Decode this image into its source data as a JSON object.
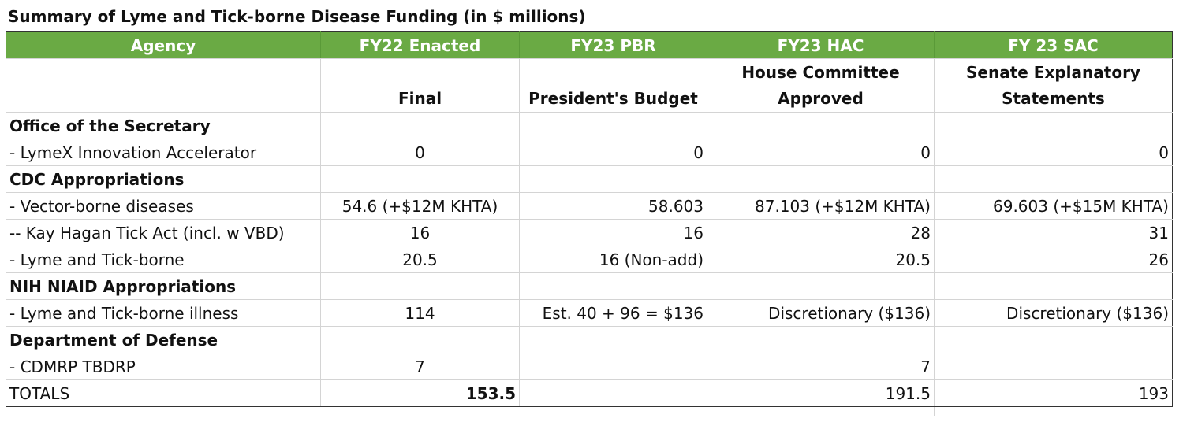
{
  "title": "Summary of Lyme and Tick-borne Disease Funding (in $ millions)",
  "headers": [
    "Agency",
    "FY22 Enacted",
    "FY23 PBR",
    "FY23 HAC",
    "FY 23 SAC"
  ],
  "subheaders": {
    "fy22": "Final",
    "pbr": "President's Budget",
    "hac": [
      "House Committee",
      "Approved"
    ],
    "sac": [
      "Senate Explanatory",
      "Statements"
    ]
  },
  "rows": [
    {
      "label": "Office of the Secretary",
      "type": "section",
      "cells": [
        "",
        "",
        "",
        ""
      ]
    },
    {
      "label": " - LymeX Innovation Accelerator",
      "type": "item",
      "cells": [
        "0",
        "0",
        "0",
        "0"
      ]
    },
    {
      "label": "CDC Appropriations",
      "type": "section",
      "cells": [
        "",
        "",
        "",
        ""
      ]
    },
    {
      "label": " - Vector-borne diseases",
      "type": "item",
      "cells": [
        "54.6 (+$12M KHTA)",
        "58.603",
        "87.103 (+$12M KHTA)",
        "69.603 (+$15M KHTA)"
      ]
    },
    {
      "label": " -- Kay Hagan Tick Act (incl. w VBD)",
      "type": "item",
      "cells": [
        "16",
        "16",
        "28",
        "31"
      ]
    },
    {
      "label": " - Lyme and Tick-borne",
      "type": "item",
      "cells": [
        "20.5",
        "16 (Non-add)",
        "20.5",
        "26"
      ]
    },
    {
      "label": "NIH NIAID Appropriations",
      "type": "section",
      "cells": [
        "",
        "",
        "",
        ""
      ]
    },
    {
      "label": " - Lyme and Tick-borne illness",
      "type": "item",
      "cells": [
        "114",
        "Est. 40 + 96 = $136",
        "Discretionary ($136)",
        "Discretionary ($136)"
      ]
    },
    {
      "label": "Department of Defense",
      "type": "section",
      "cells": [
        "",
        "",
        "",
        ""
      ]
    },
    {
      "label": " - CDMRP TBDRP",
      "type": "item",
      "cells": [
        "7",
        "",
        "7",
        ""
      ]
    }
  ],
  "totals": {
    "label": "TOTALS",
    "fy22": "153.5",
    "pbr": "",
    "hac": "191.5",
    "sac": "193"
  }
}
